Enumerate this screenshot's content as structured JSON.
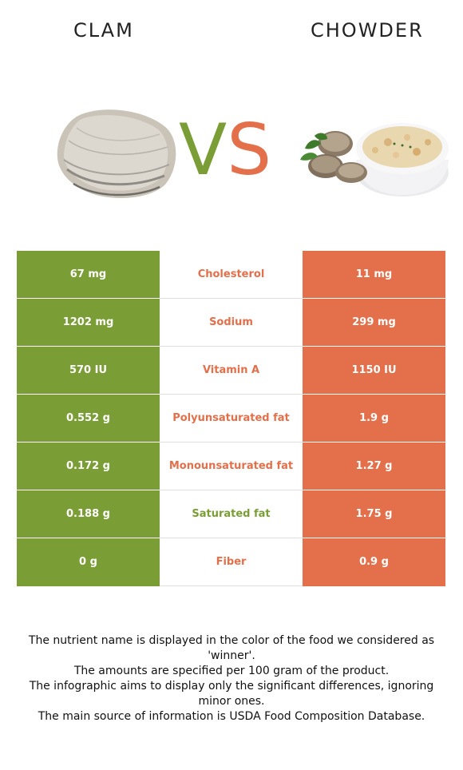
{
  "header": {
    "left_food": "CLAM",
    "right_food": "CHOWDER"
  },
  "vs": {
    "v": "V",
    "s": "S"
  },
  "colors": {
    "left_winner": "#7a9e35",
    "right_winner": "#e46f4b"
  },
  "rows": [
    {
      "left": "67 mg",
      "nutrient": "Cholesterol",
      "right": "11 mg",
      "winner": "right"
    },
    {
      "left": "1202 mg",
      "nutrient": "Sodium",
      "right": "299 mg",
      "winner": "right"
    },
    {
      "left": "570 IU",
      "nutrient": "Vitamin A",
      "right": "1150 IU",
      "winner": "right"
    },
    {
      "left": "0.552 g",
      "nutrient": "Polyunsaturated fat",
      "right": "1.9 g",
      "winner": "right"
    },
    {
      "left": "0.172 g",
      "nutrient": "Monounsaturated fat",
      "right": "1.27 g",
      "winner": "right"
    },
    {
      "left": "0.188 g",
      "nutrient": "Saturated fat",
      "right": "1.75 g",
      "winner": "left"
    },
    {
      "left": "0 g",
      "nutrient": "Fiber",
      "right": "0.9 g",
      "winner": "right"
    }
  ],
  "notes": [
    "The nutrient name is displayed in the color of the food we considered as 'winner'.",
    "The amounts are specified per 100 gram of the product.",
    "The infographic aims to display only the significant differences, ignoring minor ones.",
    "The main source of information is USDA Food Composition Database."
  ]
}
